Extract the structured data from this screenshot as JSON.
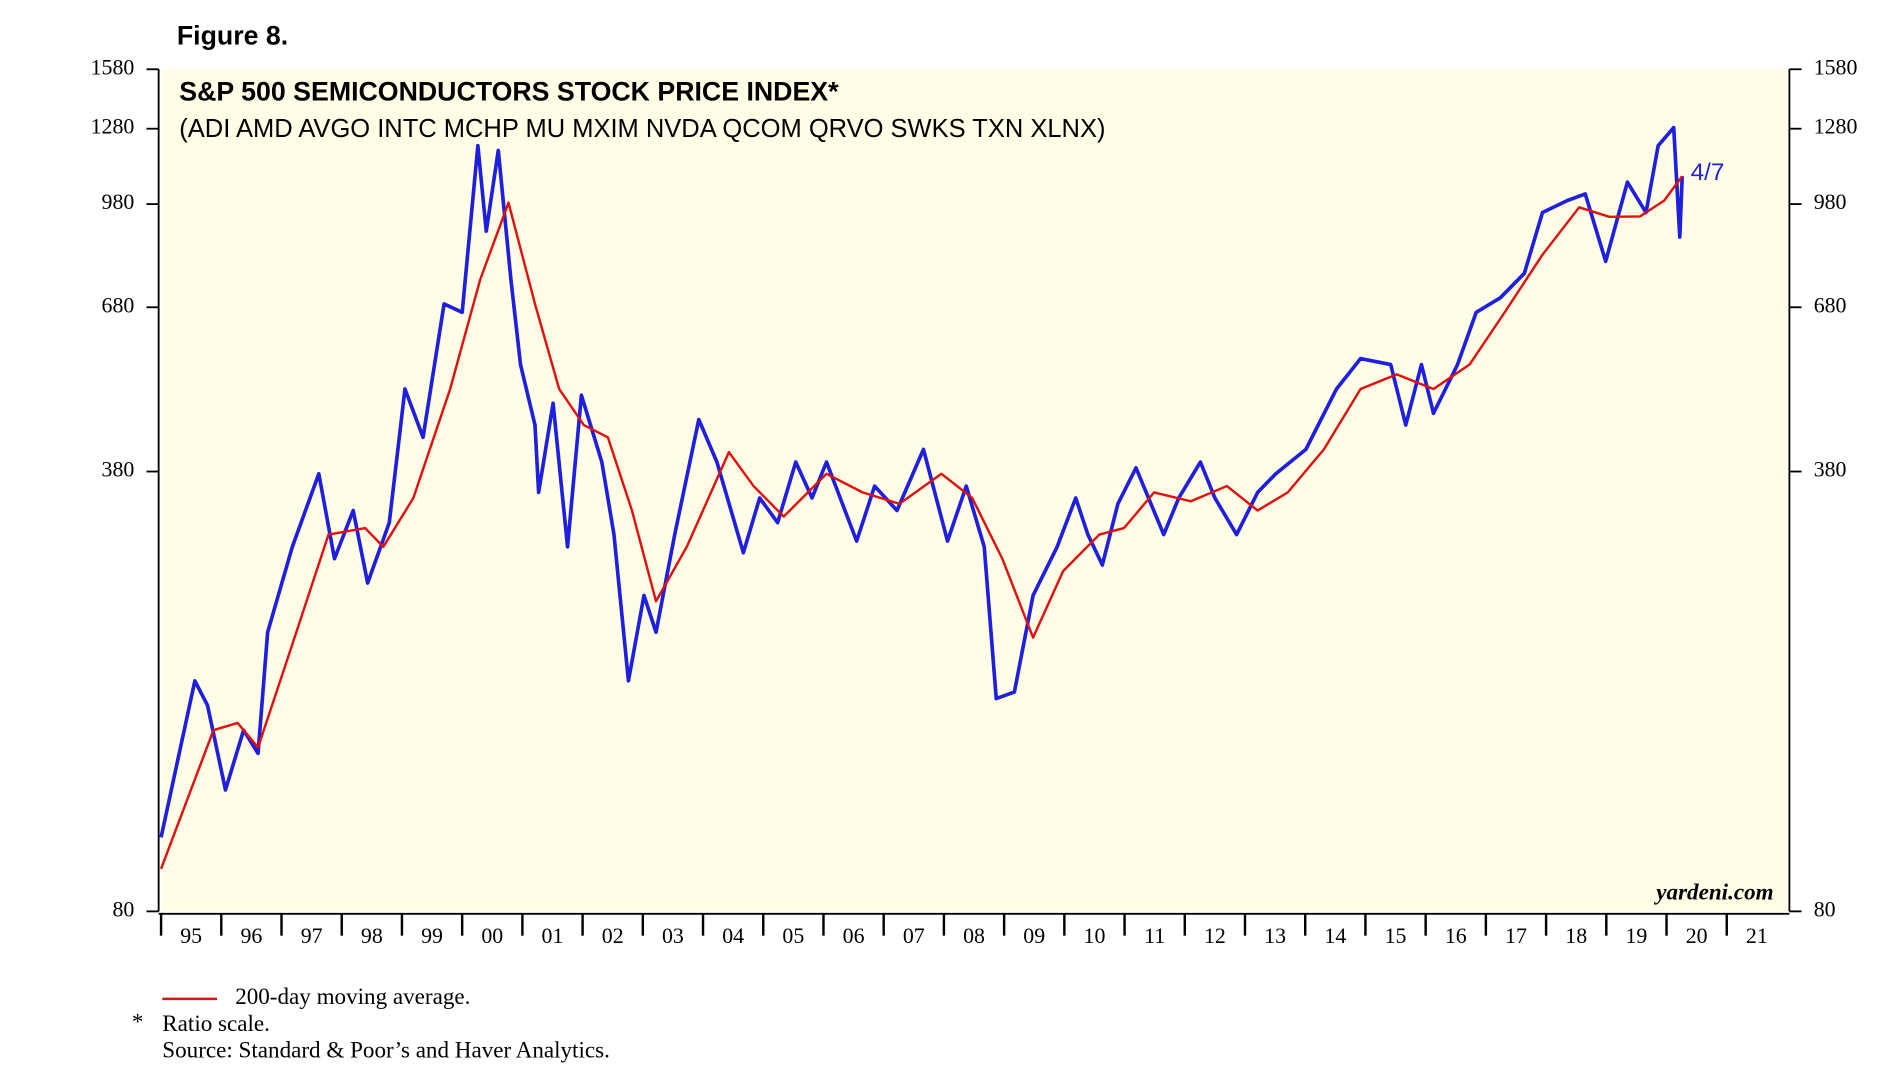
{
  "chart_data": {
    "type": "line",
    "figure_label": "Figure 8.",
    "title": "S&P 500 SEMICONDUCTORS STOCK PRICE INDEX*",
    "subtitle": "(ADI AMD AVGO INTC MCHP MU MXIM NVDA QCOM QRVO SWKS TXN XLNX)",
    "annotation": "4/7",
    "watermark": "yardeni.com",
    "footnote_marker": "*",
    "footnote": "Ratio scale.",
    "source": "Source: Standard & Poor’s and Haver Analytics.",
    "log_scale": true,
    "ylim": [
      80,
      1580
    ],
    "yticks": [
      80,
      380,
      680,
      980,
      1280,
      1580
    ],
    "xlim": [
      1995,
      2022
    ],
    "xticks": [
      {
        "value": 1995,
        "label": "95"
      },
      {
        "value": 1996,
        "label": "96"
      },
      {
        "value": 1997,
        "label": "97"
      },
      {
        "value": 1998,
        "label": "98"
      },
      {
        "value": 1999,
        "label": "99"
      },
      {
        "value": 2000,
        "label": "00"
      },
      {
        "value": 2001,
        "label": "01"
      },
      {
        "value": 2002,
        "label": "02"
      },
      {
        "value": 2003,
        "label": "03"
      },
      {
        "value": 2004,
        "label": "04"
      },
      {
        "value": 2005,
        "label": "05"
      },
      {
        "value": 2006,
        "label": "06"
      },
      {
        "value": 2007,
        "label": "07"
      },
      {
        "value": 2008,
        "label": "08"
      },
      {
        "value": 2009,
        "label": "09"
      },
      {
        "value": 2010,
        "label": "10"
      },
      {
        "value": 2011,
        "label": "11"
      },
      {
        "value": 2012,
        "label": "12"
      },
      {
        "value": 2013,
        "label": "13"
      },
      {
        "value": 2014,
        "label": "14"
      },
      {
        "value": 2015,
        "label": "15"
      },
      {
        "value": 2016,
        "label": "16"
      },
      {
        "value": 2017,
        "label": "17"
      },
      {
        "value": 2018,
        "label": "18"
      },
      {
        "value": 2019,
        "label": "19"
      },
      {
        "value": 2020,
        "label": "20"
      },
      {
        "value": 2021,
        "label": "21"
      }
    ],
    "series": [
      {
        "color": "#1f1fe0",
        "x": [
          1995.0,
          1995.56,
          1995.77,
          1996.07,
          1996.37,
          1996.61,
          1996.77,
          1997.18,
          1997.62,
          1997.88,
          1998.19,
          1998.43,
          1998.79,
          1999.05,
          1999.35,
          1999.7,
          2000.0,
          2000.26,
          2000.4,
          2000.6,
          2000.81,
          2000.97,
          2001.21,
          2001.27,
          2001.51,
          2001.75,
          2001.98,
          2002.32,
          2002.52,
          2002.76,
          2003.02,
          2003.22,
          2003.53,
          2003.93,
          2004.23,
          2004.67,
          2004.94,
          2005.24,
          2005.54,
          2005.81,
          2006.05,
          2006.55,
          2006.85,
          2007.22,
          2007.66,
          2008.06,
          2008.37,
          2008.67,
          2008.87,
          2009.17,
          2009.48,
          2009.88,
          2010.19,
          2010.39,
          2010.63,
          2010.89,
          2011.19,
          2011.65,
          2011.9,
          2012.26,
          2012.5,
          2012.86,
          2013.21,
          2013.51,
          2014.01,
          2014.52,
          2014.92,
          2015.42,
          2015.67,
          2015.93,
          2016.13,
          2016.53,
          2016.84,
          2017.24,
          2017.64,
          2017.94,
          2018.35,
          2018.65,
          2018.99,
          2019.35,
          2019.66,
          2019.86,
          2020.12,
          2020.22,
          2020.26
        ],
        "values": [
          104,
          181,
          166,
          123,
          152,
          140,
          215,
          291,
          377,
          279,
          331,
          256,
          317,
          509,
          429,
          688,
          668,
          1205,
          890,
          1185,
          750,
          555,
          448,
          353,
          484,
          291,
          498,
          393,
          304,
          181,
          245,
          215,
          304,
          457,
          393,
          285,
          346,
          317,
          393,
          346,
          393,
          297,
          361,
          331,
          411,
          297,
          361,
          291,
          170,
          174,
          245,
          291,
          346,
          304,
          273,
          339,
          385,
          304,
          346,
          393,
          346,
          304,
          353,
          377,
          411,
          509,
          567,
          555,
          448,
          555,
          467,
          555,
          668,
          703,
          767,
          951,
          992,
          1016,
          800,
          1059,
          951,
          1205,
          1285,
          872,
          1082
        ]
      },
      {
        "name": "200-day moving average.",
        "color": "#e01010",
        "x": [
          1995.0,
          1995.87,
          1996.27,
          1996.61,
          1997.18,
          1997.78,
          1998.39,
          1998.69,
          1999.19,
          1999.8,
          2000.3,
          2000.77,
          2001.21,
          2001.61,
          2002.02,
          2002.42,
          2002.82,
          2003.22,
          2003.73,
          2004.43,
          2004.84,
          2005.34,
          2006.05,
          2006.65,
          2007.26,
          2007.96,
          2008.47,
          2008.97,
          2009.48,
          2009.98,
          2010.58,
          2010.99,
          2011.49,
          2012.1,
          2012.7,
          2013.21,
          2013.71,
          2014.31,
          2014.92,
          2015.52,
          2016.13,
          2016.73,
          2017.34,
          2017.94,
          2018.55,
          2019.05,
          2019.56,
          2019.96,
          2020.26
        ],
        "values": [
          93,
          152,
          156,
          143,
          206,
          304,
          311,
          291,
          346,
          509,
          750,
          985,
          688,
          509,
          448,
          429,
          331,
          240,
          291,
          407,
          361,
          324,
          377,
          353,
          339,
          377,
          346,
          279,
          211,
          267,
          304,
          311,
          353,
          342,
          361,
          331,
          353,
          411,
          509,
          536,
          509,
          555,
          674,
          819,
          969,
          937,
          938,
          992,
          1082
        ]
      }
    ]
  }
}
